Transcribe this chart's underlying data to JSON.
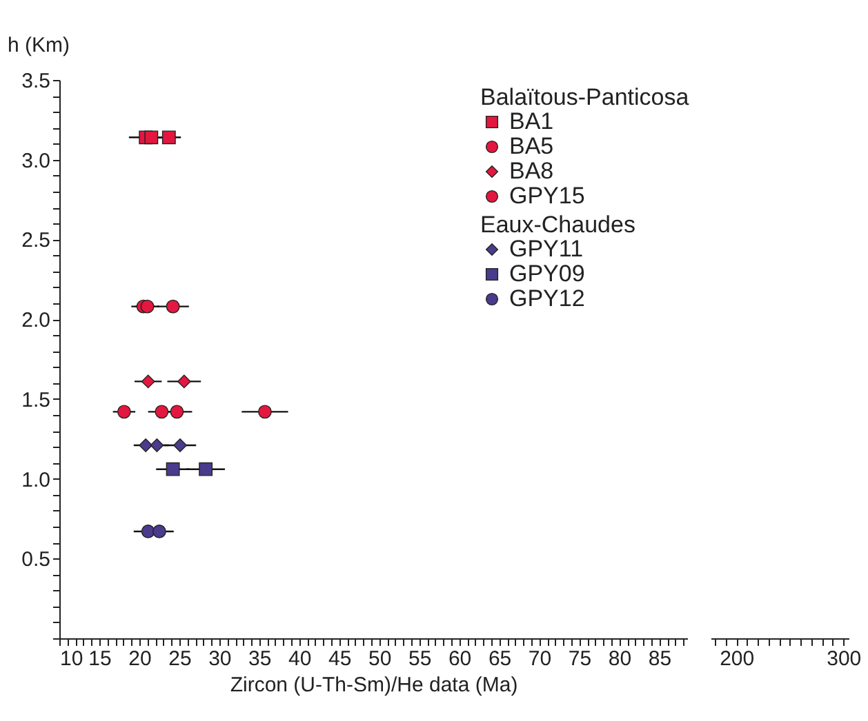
{
  "chart_data": [
    {
      "type": "scatter",
      "xlabel": "Zircon (U-Th-Sm)/He data (Ma)",
      "ylabel": "h (Km)",
      "legend_title": [
        "Balaïtous-Panticosa",
        "Eaux-Chaudes"
      ],
      "legend": "top right",
      "grid": false,
      "xlim": [
        10,
        88.5
      ],
      "ylim": [
        0,
        3.5
      ],
      "xticks": [
        10,
        {
          "value": 11,
          "label": null
        },
        {
          "value": 12,
          "label": null
        },
        {
          "value": 13,
          "label": null
        },
        {
          "value": 14,
          "label": null
        },
        15,
        {
          "value": 16,
          "label": null
        },
        {
          "value": 17,
          "label": null
        },
        {
          "value": 18,
          "label": null
        },
        {
          "value": 19,
          "label": null
        },
        20,
        {
          "value": 21,
          "label": null
        },
        {
          "value": 22,
          "label": null
        },
        {
          "value": 23,
          "label": null
        },
        {
          "value": 24,
          "label": null
        },
        25,
        {
          "value": 26,
          "label": null
        },
        {
          "value": 27,
          "label": null
        },
        {
          "value": 28,
          "label": null
        },
        {
          "value": 29,
          "label": null
        },
        30,
        {
          "value": 31,
          "label": null
        },
        {
          "value": 32,
          "label": null
        },
        {
          "value": 33,
          "label": null
        },
        {
          "value": 34,
          "label": null
        },
        35,
        {
          "value": 36,
          "label": null
        },
        {
          "value": 37,
          "label": null
        },
        {
          "value": 38,
          "label": null
        },
        {
          "value": 39,
          "label": null
        },
        40,
        {
          "value": 41,
          "label": null
        },
        {
          "value": 42,
          "label": null
        },
        {
          "value": 43,
          "label": null
        },
        {
          "value": 44,
          "label": null
        },
        45,
        {
          "value": 46,
          "label": null
        },
        {
          "value": 47,
          "label": null
        },
        {
          "value": 48,
          "label": null
        },
        {
          "value": 49,
          "label": null
        },
        50,
        {
          "value": 51,
          "label": null
        },
        {
          "value": 52,
          "label": null
        },
        {
          "value": 53,
          "label": null
        },
        {
          "value": 54,
          "label": null
        },
        55,
        {
          "value": 56,
          "label": null
        },
        {
          "value": 57,
          "label": null
        },
        {
          "value": 58,
          "label": null
        },
        {
          "value": 59,
          "label": null
        },
        60,
        {
          "value": 61,
          "label": null
        },
        {
          "value": 62,
          "label": null
        },
        {
          "value": 63,
          "label": null
        },
        {
          "value": 64,
          "label": null
        },
        65,
        {
          "value": 66,
          "label": null
        },
        {
          "value": 67,
          "label": null
        },
        {
          "value": 68,
          "label": null
        },
        {
          "value": 69,
          "label": null
        },
        70,
        {
          "value": 71,
          "label": null
        },
        {
          "value": 72,
          "label": null
        },
        {
          "value": 73,
          "label": null
        },
        {
          "value": 74,
          "label": null
        },
        75,
        {
          "value": 76,
          "label": null
        },
        {
          "value": 77,
          "label": null
        },
        {
          "value": 78,
          "label": null
        },
        {
          "value": 79,
          "label": null
        },
        80,
        {
          "value": 81,
          "label": null
        },
        {
          "value": 82,
          "label": null
        },
        {
          "value": 83,
          "label": null
        },
        {
          "value": 84,
          "label": null
        },
        85,
        {
          "value": 86,
          "label": null
        },
        {
          "value": 87,
          "label": null
        },
        {
          "value": 88,
          "label": null
        }
      ],
      "yticks": [
        {
          "value": 0,
          "label": null
        },
        {
          "value": 0.1,
          "label": null
        },
        {
          "value": 0.2,
          "label": null
        },
        {
          "value": 0.3,
          "label": null
        },
        {
          "value": 0.4,
          "label": null
        },
        {
          "value": 0.5,
          "label": "0.5"
        },
        {
          "value": 0.6,
          "label": null
        },
        {
          "value": 0.7,
          "label": null
        },
        {
          "value": 0.8,
          "label": null
        },
        {
          "value": 0.9,
          "label": null
        },
        {
          "value": 1,
          "label": "1.0"
        },
        {
          "value": 1.1,
          "label": null
        },
        {
          "value": 1.2,
          "label": null
        },
        {
          "value": 1.3,
          "label": null
        },
        {
          "value": 1.4,
          "label": null
        },
        {
          "value": 1.5,
          "label": "1.5"
        },
        {
          "value": 1.6,
          "label": null
        },
        {
          "value": 1.7,
          "label": null
        },
        {
          "value": 1.8,
          "label": null
        },
        {
          "value": 1.9,
          "label": null
        },
        {
          "value": 2,
          "label": "2.0"
        },
        {
          "value": 2.1,
          "label": null
        },
        {
          "value": 2.2,
          "label": null
        },
        {
          "value": 2.3,
          "label": null
        },
        {
          "value": 2.4,
          "label": null
        },
        {
          "value": 2.5,
          "label": "2.5"
        },
        {
          "value": 2.6,
          "label": null
        },
        {
          "value": 2.7,
          "label": null
        },
        {
          "value": 2.8,
          "label": null
        },
        {
          "value": 2.9,
          "label": null
        },
        {
          "value": 3,
          "label": "3.0"
        },
        {
          "value": 3.1,
          "label": null
        },
        {
          "value": 3.2,
          "label": null
        },
        {
          "value": 3.3,
          "label": null
        },
        {
          "value": 3.4,
          "label": null
        },
        {
          "value": 3.5,
          "label": "3.5"
        }
      ],
      "series": [
        {
          "name": "BA1",
          "color": "#e3173f",
          "marker": "square",
          "x": [
            20.8,
            21.5,
            23.7
          ],
          "values": [
            3.14,
            3.14,
            3.14
          ],
          "xerrors": [
            2.1,
            1.5,
            1.5
          ]
        },
        {
          "name": "BA5",
          "color": "#e3173f",
          "marker": "circle",
          "x": [
            20.5,
            21.0,
            24.2
          ],
          "values": [
            2.08,
            2.08,
            2.08
          ],
          "xerrors": [
            1.5,
            1.5,
            2.0
          ]
        },
        {
          "name": "BA8",
          "color": "#e3173f",
          "marker": "diamond",
          "x": [
            21.1,
            25.6
          ],
          "values": [
            1.61,
            1.61
          ],
          "xerrors": [
            1.7,
            2.1
          ]
        },
        {
          "name": "GPY15",
          "color": "#e3173f",
          "marker": "circle",
          "x": [
            18.1,
            22.8,
            24.7,
            35.7
          ],
          "values": [
            1.42,
            1.42,
            1.42,
            1.42
          ],
          "xerrors": [
            1.4,
            1.7,
            1.9,
            2.9
          ]
        },
        {
          "name": "GPY11",
          "color": "#4b3b8c",
          "marker": "diamond",
          "x": [
            20.8,
            22.2,
            25.1
          ],
          "values": [
            1.21,
            1.21,
            1.21
          ],
          "xerrors": [
            1.5,
            1.5,
            2.0
          ]
        },
        {
          "name": "GPY09",
          "color": "#4b3b8c",
          "marker": "square",
          "x": [
            24.2,
            28.3
          ],
          "values": [
            1.06,
            1.06
          ],
          "xerrors": [
            2.1,
            2.4
          ]
        },
        {
          "name": "GPY12",
          "color": "#4b3b8c",
          "marker": "circle",
          "x": [
            21.1,
            22.5
          ],
          "values": [
            0.67,
            0.67
          ],
          "xerrors": [
            1.8,
            1.8
          ]
        }
      ]
    },
    {
      "type": "scatter",
      "tick_labels": "x",
      "xlim": [
        176,
        305
      ],
      "ylim": [
        0,
        3.5
      ],
      "xticks": [
        {
          "value": 180,
          "label": null
        },
        {
          "value": 190,
          "label": null
        },
        200,
        {
          "value": 210,
          "label": null
        },
        {
          "value": 220,
          "label": null
        },
        {
          "value": 230,
          "label": null
        },
        {
          "value": 240,
          "label": null
        },
        {
          "value": 250,
          "label": null
        },
        {
          "value": 260,
          "label": null
        },
        {
          "value": 270,
          "label": null
        },
        {
          "value": 280,
          "label": null
        },
        {
          "value": 290,
          "label": null
        },
        300
      ]
    }
  ]
}
